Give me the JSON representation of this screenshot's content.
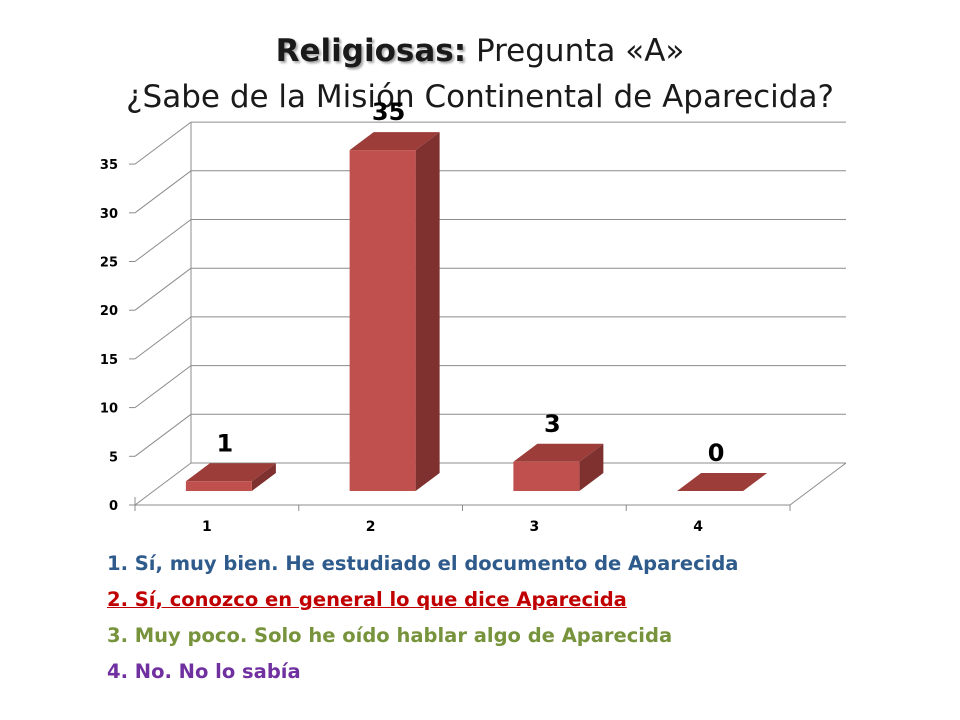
{
  "title": {
    "bold": "Religiosas:",
    "rest": " Pregunta «A»",
    "line2": "¿Sabe de la Misión Continental de Aparecida?"
  },
  "chart_data": {
    "type": "bar",
    "style": "3d-column",
    "categories": [
      "1",
      "2",
      "3",
      "4"
    ],
    "values": [
      1,
      35,
      3,
      0
    ],
    "data_labels": [
      "1",
      "35",
      "3",
      "0"
    ],
    "ylim": [
      0,
      35
    ],
    "yticks": [
      0,
      5,
      10,
      15,
      20,
      25,
      30,
      35
    ],
    "grid": true,
    "bar_color": "#c0504d",
    "bar_side_color": "#7f3130",
    "bar_top_color": "#9c3d3a"
  },
  "legend": [
    {
      "text": "1. Sí, muy bien. He estudiado el documento de Aparecida",
      "color": "#2e5b8c",
      "underline": false
    },
    {
      "text": "2. Sí, conozco en general lo que dice Aparecida",
      "color": "#c00000",
      "underline": true
    },
    {
      "text": "3. Muy poco. Solo he oído hablar algo de Aparecida",
      "color": "#77933c",
      "underline": false
    },
    {
      "text": "4. No. No lo sabía",
      "color": "#7030a0",
      "underline": false
    }
  ]
}
